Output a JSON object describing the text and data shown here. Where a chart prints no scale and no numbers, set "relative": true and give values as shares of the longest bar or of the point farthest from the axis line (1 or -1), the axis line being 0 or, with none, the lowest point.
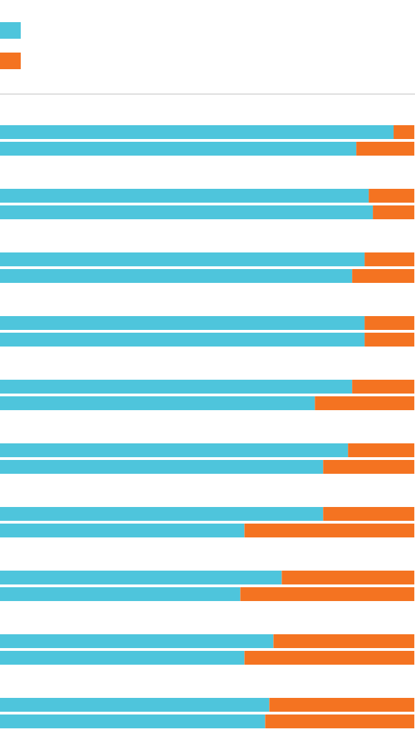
{
  "chart_data": {
    "type": "bar",
    "orientation": "horizontal",
    "stacked": true,
    "relative": true,
    "grid": false,
    "categories": [
      null,
      null,
      null,
      null,
      null,
      null,
      null,
      null,
      null,
      null,
      null,
      null,
      null,
      null,
      null,
      null,
      null,
      null,
      null,
      null
    ],
    "series": [
      {
        "color": "#4ec5dc",
        "values": [
          0.95,
          0.86,
          0.89,
          0.9,
          0.88,
          0.85,
          0.88,
          0.88,
          0.85,
          0.76,
          0.84,
          0.78,
          0.78,
          0.59,
          0.68,
          0.58,
          0.66,
          0.59,
          0.65,
          0.64
        ]
      },
      {
        "color": "#f47321",
        "values": [
          0.05,
          0.14,
          0.11,
          0.1,
          0.12,
          0.15,
          0.12,
          0.12,
          0.15,
          0.24,
          0.16,
          0.22,
          0.22,
          0.41,
          0.32,
          0.42,
          0.34,
          0.41,
          0.35,
          0.36
        ]
      }
    ]
  }
}
